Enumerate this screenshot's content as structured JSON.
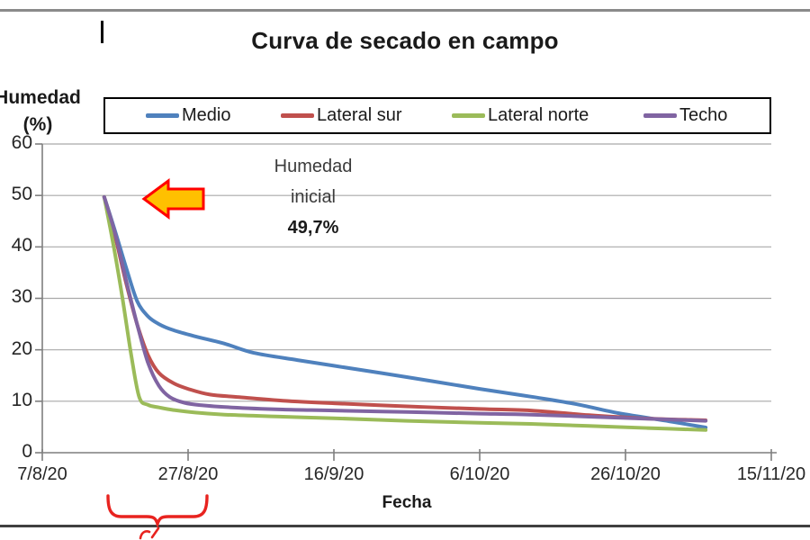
{
  "chart_data": {
    "type": "line",
    "title": "Curva de secado en campo",
    "xlabel": "Fecha",
    "ylabel": "Humedad (%)",
    "ylabel_lines": [
      "Humedad",
      "(%)"
    ],
    "x_tick_labels": [
      "7/8/20",
      "27/8/20",
      "16/9/20",
      "6/10/20",
      "26/10/20",
      "15/11/20"
    ],
    "x_tick_days": [
      0,
      20,
      40,
      60,
      80,
      100
    ],
    "y_ticks": [
      0,
      10,
      20,
      30,
      40,
      50,
      60
    ],
    "ylim": [
      0,
      60
    ],
    "x_unit": "days since 7/8/20",
    "grid": "horizontal",
    "legend_position": "top",
    "series": [
      {
        "name": "Medio",
        "color": "#4F81BD",
        "points": [
          [
            8.5,
            49.7
          ],
          [
            10,
            43
          ],
          [
            11.5,
            36
          ],
          [
            13,
            29.5
          ],
          [
            14.5,
            26.5
          ],
          [
            16,
            25
          ],
          [
            18,
            23.8
          ],
          [
            21,
            22.6
          ],
          [
            25,
            21.2
          ],
          [
            29,
            19.4
          ],
          [
            35,
            18
          ],
          [
            40,
            16.9
          ],
          [
            50,
            14.7
          ],
          [
            60,
            12.4
          ],
          [
            67,
            10.9
          ],
          [
            73,
            9.5
          ],
          [
            79,
            7.7
          ],
          [
            86,
            6.1
          ],
          [
            91,
            4.9
          ]
        ]
      },
      {
        "name": "Lateral sur",
        "color": "#C0504D",
        "points": [
          [
            8.5,
            49.7
          ],
          [
            10,
            42
          ],
          [
            11.5,
            33
          ],
          [
            13,
            25
          ],
          [
            14.5,
            19
          ],
          [
            16,
            15.5
          ],
          [
            18,
            13.5
          ],
          [
            20,
            12.4
          ],
          [
            23,
            11.3
          ],
          [
            27,
            10.8
          ],
          [
            33,
            10.1
          ],
          [
            40,
            9.6
          ],
          [
            50,
            9.0
          ],
          [
            60,
            8.5
          ],
          [
            67,
            8.2
          ],
          [
            75,
            7.3
          ],
          [
            82,
            6.7
          ],
          [
            91,
            6.3
          ]
        ]
      },
      {
        "name": "Lateral norte",
        "color": "#9BBB59",
        "points": [
          [
            8.5,
            49.7
          ],
          [
            9.8,
            40
          ],
          [
            11,
            30
          ],
          [
            12.2,
            19
          ],
          [
            13.3,
            10.8
          ],
          [
            14.5,
            9.3
          ],
          [
            16,
            8.8
          ],
          [
            18,
            8.3
          ],
          [
            21,
            7.8
          ],
          [
            25,
            7.4
          ],
          [
            33,
            7.0
          ],
          [
            40,
            6.7
          ],
          [
            50,
            6.2
          ],
          [
            60,
            5.8
          ],
          [
            67,
            5.6
          ],
          [
            75,
            5.2
          ],
          [
            83,
            4.8
          ],
          [
            91,
            4.4
          ]
        ]
      },
      {
        "name": "Techo",
        "color": "#8064A2",
        "points": [
          [
            8.5,
            49.7
          ],
          [
            10,
            42.5
          ],
          [
            11.5,
            33.5
          ],
          [
            13,
            25
          ],
          [
            14.5,
            17.5
          ],
          [
            16,
            13
          ],
          [
            17.5,
            10.8
          ],
          [
            19.5,
            9.7
          ],
          [
            22,
            9.2
          ],
          [
            26,
            8.8
          ],
          [
            33,
            8.4
          ],
          [
            40,
            8.2
          ],
          [
            50,
            7.9
          ],
          [
            60,
            7.6
          ],
          [
            67,
            7.4
          ],
          [
            75,
            7.0
          ],
          [
            83,
            6.6
          ],
          [
            91,
            6.2
          ]
        ]
      }
    ],
    "annotation": {
      "line1": "Humedad",
      "line2": "inicial",
      "value": "49,7%"
    },
    "decoration_colors": {
      "arrow_fill": "#FFC000",
      "arrow_stroke": "#FF0000",
      "brace": "#E8231F",
      "gridline": "#a9a9a9",
      "axis": "#7f7f7f"
    }
  }
}
